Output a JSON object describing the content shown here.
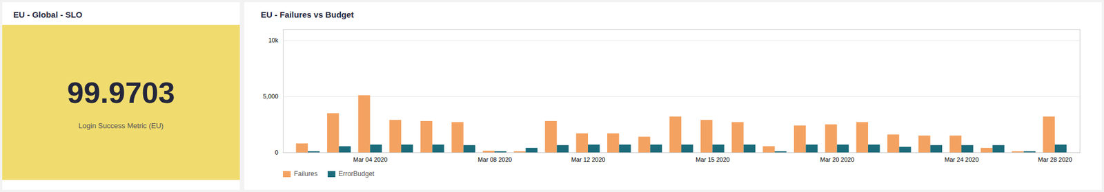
{
  "chart_data": [
    {
      "type": "kpi",
      "title": "EU - Global - SLO",
      "value": 99.9703,
      "subtitle": "Login Success Metric (EU)",
      "color": "#F0DC6E"
    },
    {
      "type": "bar",
      "title": "EU - Failures vs Budget",
      "categories": [
        null,
        null,
        "Mar 04 2020",
        null,
        null,
        null,
        "Mar 08 2020",
        null,
        null,
        "Mar 12 2020",
        null,
        null,
        null,
        "Mar 15 2020",
        null,
        null,
        null,
        "Mar 20 2020",
        null,
        null,
        null,
        "Mar 24 2020",
        null,
        null,
        "Mar 28 2020"
      ],
      "series": [
        {
          "name": "Failures",
          "color": "#F4A261",
          "values": [
            800,
            3500,
            5100,
            2900,
            2800,
            2700,
            150,
            100,
            2800,
            1700,
            1700,
            1400,
            3200,
            2900,
            2700,
            550,
            2400,
            2500,
            2700,
            1600,
            1500,
            1500,
            400,
            100,
            3200
          ]
        },
        {
          "name": "ErrorBudget",
          "color": "#1B6B7B",
          "values": [
            100,
            550,
            700,
            700,
            700,
            650,
            100,
            400,
            650,
            700,
            700,
            700,
            700,
            700,
            700,
            100,
            700,
            700,
            700,
            500,
            650,
            650,
            650,
            100,
            700
          ]
        }
      ],
      "ylim": [
        0,
        11000
      ],
      "yticks": [
        0,
        {
          "value": 5000,
          "label": "5,000"
        },
        {
          "value": 10000,
          "label": "10k"
        }
      ],
      "grid": true,
      "legend": "bottom"
    }
  ]
}
